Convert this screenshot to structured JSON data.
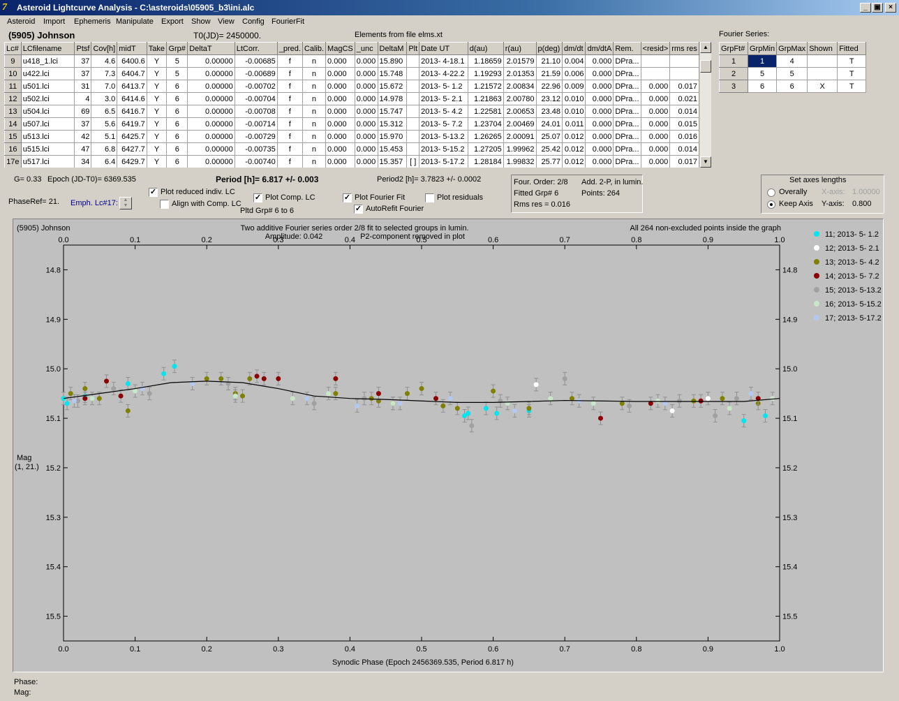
{
  "window": {
    "title": "Asteroid Lightcurve Analysis - C:\\asteroids\\05905_b3\\ini.alc",
    "minimize": "_",
    "restore": "▣",
    "close": "×"
  },
  "menu": [
    "Asteroid",
    "Import",
    "Ephemeris",
    "Manipulate",
    "Export",
    "Show",
    "View",
    "Config",
    "FourierFit"
  ],
  "header": {
    "object": "(5905) Johnson",
    "t0": "T0(JD)= 2450000.",
    "elements": "Elements from file elms.xt"
  },
  "table": {
    "columns": [
      "Lc#",
      "LCfilename",
      "Ptsf",
      "Cov[h]",
      "midT",
      "Take",
      "Grp#",
      "DeltaT",
      "LtCorr.",
      "_pred.",
      "Calib.",
      "MagCS",
      "_unc",
      "DeltaM",
      "Plt",
      "Date UT",
      "d(au)",
      "r(au)",
      "p(deg)",
      "dm/dt",
      "dm/dtA",
      "Rem.",
      "<resid>",
      "rms res"
    ],
    "rows": [
      [
        "9",
        "u418_1.lci",
        "37",
        "4.6",
        "6400.6",
        "Y",
        "5",
        "0.00000",
        "-0.00685",
        "f",
        "n",
        "0.000",
        "0.000",
        "15.890",
        "",
        "2013- 4-18.1",
        "1.18659",
        "2.01579",
        "21.10",
        "0.004",
        "0.000",
        "DPra...",
        "",
        ""
      ],
      [
        "10",
        "u422.lci",
        "37",
        "7.3",
        "6404.7",
        "Y",
        "5",
        "0.00000",
        "-0.00689",
        "f",
        "n",
        "0.000",
        "0.000",
        "15.748",
        "",
        "2013- 4-22.2",
        "1.19293",
        "2.01353",
        "21.59",
        "0.006",
        "0.000",
        "DPra...",
        "",
        ""
      ],
      [
        "11",
        "u501.lci",
        "31",
        "7.0",
        "6413.7",
        "Y",
        "6",
        "0.00000",
        "-0.00702",
        "f",
        "n",
        "0.000",
        "0.000",
        "15.672",
        "",
        "2013- 5- 1.2",
        "1.21572",
        "2.00834",
        "22.96",
        "0.009",
        "0.000",
        "DPra...",
        "0.000",
        "0.017"
      ],
      [
        "12",
        "u502.lci",
        "4",
        "3.0",
        "6414.6",
        "Y",
        "6",
        "0.00000",
        "-0.00704",
        "f",
        "n",
        "0.000",
        "0.000",
        "14.978",
        "",
        "2013- 5- 2.1",
        "1.21863",
        "2.00780",
        "23.12",
        "0.010",
        "0.000",
        "DPra...",
        "0.000",
        "0.021"
      ],
      [
        "13",
        "u504.lci",
        "69",
        "6.5",
        "6416.7",
        "Y",
        "6",
        "0.00000",
        "-0.00708",
        "f",
        "n",
        "0.000",
        "0.000",
        "15.747",
        "",
        "2013- 5- 4.2",
        "1.22581",
        "2.00653",
        "23.48",
        "0.010",
        "0.000",
        "DPra...",
        "0.000",
        "0.014"
      ],
      [
        "14",
        "u507.lci",
        "37",
        "5.6",
        "6419.7",
        "Y",
        "6",
        "0.00000",
        "-0.00714",
        "f",
        "n",
        "0.000",
        "0.000",
        "15.312",
        "",
        "2013- 5- 7.2",
        "1.23704",
        "2.00469",
        "24.01",
        "0.011",
        "0.000",
        "DPra...",
        "0.000",
        "0.015"
      ],
      [
        "15",
        "u513.lci",
        "42",
        "5.1",
        "6425.7",
        "Y",
        "6",
        "0.00000",
        "-0.00729",
        "f",
        "n",
        "0.000",
        "0.000",
        "15.970",
        "",
        "2013- 5-13.2",
        "1.26265",
        "2.00091",
        "25.07",
        "0.012",
        "0.000",
        "DPra...",
        "0.000",
        "0.016"
      ],
      [
        "16",
        "u515.lci",
        "47",
        "6.8",
        "6427.7",
        "Y",
        "6",
        "0.00000",
        "-0.00735",
        "f",
        "n",
        "0.000",
        "0.000",
        "15.453",
        "",
        "2013- 5-15.2",
        "1.27205",
        "1.99962",
        "25.42",
        "0.012",
        "0.000",
        "DPra...",
        "0.000",
        "0.014"
      ],
      [
        "17e",
        "u517.lci",
        "34",
        "6.4",
        "6429.7",
        "Y",
        "6",
        "0.00000",
        "-0.00740",
        "f",
        "n",
        "0.000",
        "0.000",
        "15.357",
        "[ ]",
        "2013- 5-17.2",
        "1.28184",
        "1.99832",
        "25.77",
        "0.012",
        "0.000",
        "DPra...",
        "0.000",
        "0.017"
      ]
    ]
  },
  "fourier_table": {
    "title": "Fourier Series:",
    "columns": [
      "GrpFt#",
      "GrpMin",
      "GrpMax",
      "Shown",
      "Fitted"
    ],
    "rows": [
      [
        "1",
        "1",
        "4",
        "",
        "T"
      ],
      [
        "2",
        "5",
        "5",
        "",
        "T"
      ],
      [
        "3",
        "6",
        "6",
        "X",
        "T"
      ]
    ]
  },
  "info": {
    "g": "G= 0.33",
    "epoch": "Epoch (JD-T0)= 6369.535",
    "period": "Period [h]= 6.817 +/- 0.003",
    "period2": "Period2 [h]= 3.7823 +/- 0.0002",
    "phaseref": "PhaseRef= 21.",
    "emph": "Emph. Lc#17:",
    "plot_reduced": "Plot reduced indiv. LC",
    "align": "Align with Comp. LC",
    "plot_comp": "Plot Comp. LC",
    "pltd_grp": "Pltd Grp#  6  to  6",
    "plot_fourier": "Plot Fourier Fit",
    "autorefit": "AutoRefit Fourier",
    "plot_residuals": "Plot residuals"
  },
  "fit_box": {
    "order": "Four. Order:  2/8",
    "add": "Add. 2-P, in lumin.",
    "fitted": "Fitted Grp# 6",
    "points": "Points: 264",
    "rms": "Rms res     = 0.016"
  },
  "axes_box": {
    "title": "Set axes lengths",
    "overally": "Overally",
    "keep": "Keep Axis",
    "xaxis_label": "X-axis:",
    "xaxis_val": "1.00000",
    "yaxis_label": "Y-axis:",
    "yaxis_val": "0.800"
  },
  "plot": {
    "object": "(5905) Johnson",
    "title1": "Two additive Fourier series order 2/8 fit to selected groups in lumin.",
    "title2": "Amplitude: 0.042",
    "title3": "P2-component removed in plot",
    "note": "All 264 non-excluded points inside the graph",
    "ylabel1": "Mag",
    "ylabel2": "(1, 21.)",
    "xlabel": "Synodic Phase (Epoch 2456369.535, Period 6.817 h)"
  },
  "chart_data": {
    "type": "scatter",
    "title": "Two additive Fourier series order 2/8 fit to selected groups in lumin.",
    "xlabel": "Synodic Phase (Epoch 2456369.535, Period 6.817 h)",
    "ylabel": "Mag",
    "xlim": [
      0.0,
      1.0
    ],
    "ylim": [
      15.55,
      14.75
    ],
    "y_inverted": true,
    "xticks": [
      "0.0",
      "0.1",
      "0.2",
      "0.3",
      "0.4",
      "0.5",
      "0.6",
      "0.7",
      "0.8",
      "0.9",
      "1.0"
    ],
    "yticks": [
      "14.8",
      "14.9",
      "15.0",
      "15.1",
      "15.2",
      "15.3",
      "15.4",
      "15.5"
    ],
    "fit_curve": {
      "x": [
        0.0,
        0.05,
        0.1,
        0.15,
        0.2,
        0.25,
        0.3,
        0.35,
        0.4,
        0.45,
        0.5,
        0.55,
        0.6,
        0.65,
        0.7,
        0.75,
        0.8,
        0.85,
        0.9,
        0.95,
        1.0
      ],
      "y": [
        15.06,
        15.05,
        15.04,
        15.028,
        15.025,
        15.028,
        15.04,
        15.055,
        15.06,
        15.062,
        15.065,
        15.068,
        15.068,
        15.066,
        15.064,
        15.065,
        15.066,
        15.066,
        15.066,
        15.066,
        15.06
      ]
    },
    "series": [
      {
        "name": "11; 2013- 5- 1.2",
        "color": "#00e5ee",
        "x": [
          0.0,
          0.005,
          0.03,
          0.09,
          0.14,
          0.155,
          0.56,
          0.565,
          0.59,
          0.605,
          0.65,
          0.95,
          0.98
        ],
        "y": [
          15.06,
          15.07,
          15.055,
          15.03,
          15.01,
          14.995,
          15.095,
          15.09,
          15.08,
          15.09,
          15.085,
          15.105,
          15.095
        ]
      },
      {
        "name": "12; 2013- 5- 2.1",
        "color": "#ffffff",
        "x": [
          0.66,
          0.85,
          0.9
        ],
        "y": [
          15.032,
          15.085,
          15.06
        ]
      },
      {
        "name": "13; 2013- 5- 4.2",
        "color": "#808000",
        "x": [
          0.01,
          0.03,
          0.05,
          0.09,
          0.2,
          0.22,
          0.24,
          0.25,
          0.26,
          0.38,
          0.43,
          0.44,
          0.46,
          0.48,
          0.5,
          0.53,
          0.55,
          0.6,
          0.65,
          0.71,
          0.78,
          0.88,
          0.92,
          0.97
        ],
        "y": [
          15.05,
          15.04,
          15.06,
          15.085,
          15.02,
          15.02,
          15.05,
          15.055,
          15.02,
          15.05,
          15.06,
          15.065,
          15.07,
          15.05,
          15.04,
          15.075,
          15.08,
          15.045,
          15.08,
          15.06,
          15.07,
          15.065,
          15.06,
          15.07
        ]
      },
      {
        "name": "14; 2013- 5- 7.2",
        "color": "#8b0000",
        "x": [
          0.03,
          0.06,
          0.08,
          0.27,
          0.28,
          0.3,
          0.38,
          0.44,
          0.52,
          0.75,
          0.82,
          0.89,
          0.97
        ],
        "y": [
          15.06,
          15.025,
          15.055,
          15.015,
          15.02,
          15.02,
          15.02,
          15.05,
          15.06,
          15.1,
          15.07,
          15.065,
          15.06
        ]
      },
      {
        "name": "15; 2013- 5-13.2",
        "color": "#a0a0a0",
        "x": [
          0.02,
          0.07,
          0.12,
          0.23,
          0.35,
          0.42,
          0.57,
          0.61,
          0.7,
          0.79,
          0.86,
          0.91,
          0.94
        ],
        "y": [
          15.065,
          15.04,
          15.05,
          15.03,
          15.07,
          15.06,
          15.115,
          15.065,
          15.02,
          15.075,
          15.065,
          15.095,
          15.06
        ]
      },
      {
        "name": "16; 2013- 5-15.2",
        "color": "#c8e6c8",
        "x": [
          0.04,
          0.1,
          0.24,
          0.32,
          0.37,
          0.46,
          0.62,
          0.68,
          0.74,
          0.83,
          0.93,
          0.99
        ],
        "y": [
          15.06,
          15.045,
          15.055,
          15.06,
          15.05,
          15.07,
          15.07,
          15.06,
          15.07,
          15.065,
          15.08,
          15.06
        ]
      },
      {
        "name": "17; 2013- 5-17.2",
        "color": "#b4c8f0",
        "x": [
          0.015,
          0.11,
          0.18,
          0.34,
          0.41,
          0.47,
          0.54,
          0.63,
          0.72,
          0.84,
          0.96
        ],
        "y": [
          15.065,
          15.04,
          15.03,
          15.06,
          15.075,
          15.07,
          15.06,
          15.085,
          15.065,
          15.07,
          15.05
        ]
      }
    ]
  },
  "status": {
    "phase": "Phase:",
    "mag": "Mag:"
  }
}
